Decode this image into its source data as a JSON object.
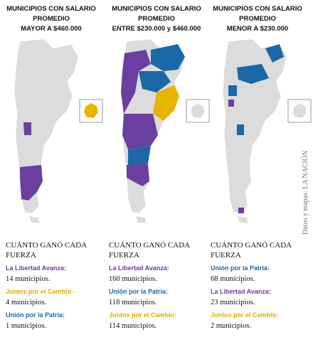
{
  "columns": [
    {
      "title": [
        "MUNICIPIOS CON SALARIO",
        "PROMEDIO",
        "MAYOR A $460.000"
      ],
      "heading": [
        "CUÁNTO GANÓ CADA",
        "FUERZA"
      ],
      "items": [
        {
          "party": "La Libertad Avanza:",
          "count": "14 municipios."
        },
        {
          "party": "Juntos por el Cambio:",
          "count": "4 municipios."
        },
        {
          "party": "Unión por la Patria:",
          "count": "1 municipios."
        }
      ]
    },
    {
      "title": [
        "MUNICIPIOS CON SALARIO",
        "PROMEDIO",
        "ENTRE $230.000 y $460.000"
      ],
      "heading": [
        "CUÁNTO GANÓ CADA",
        "FUERZA"
      ],
      "items": [
        {
          "party": "La Libertad Avanza:",
          "count": "160 municipios."
        },
        {
          "party": "Unión por la Patria:",
          "count": "118 municipios."
        },
        {
          "party": "Juntos por el Cambio:",
          "count": "114 municipios."
        }
      ]
    },
    {
      "title": [
        "MUNICIPIOS CON SALARIO",
        "PROMEDIO",
        "MENOR A $230.000"
      ],
      "heading": [
        "CUÁNTO GANÓ CADA",
        "FUERZA"
      ],
      "items": [
        {
          "party": "Unión por la Patria:",
          "count": "68 municipios."
        },
        {
          "party": "La Libertad Avanza:",
          "count": "23 municipios."
        },
        {
          "party": "Juntos por el Cambio:",
          "count": "2 municipios."
        }
      ]
    }
  ],
  "credit": "Datos y mapas: LA NACIÓN"
}
